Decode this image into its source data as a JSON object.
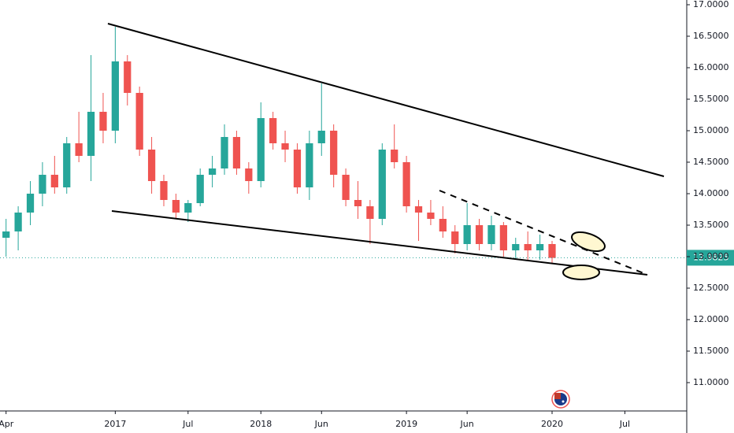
{
  "chart_data": {
    "type": "candlestick",
    "x": [
      0,
      1,
      2,
      3,
      4,
      5,
      6,
      7,
      8,
      9,
      10,
      11,
      12,
      13,
      14,
      15,
      16,
      17,
      18,
      19,
      20,
      21,
      22,
      23,
      24,
      25,
      26,
      27,
      28,
      29,
      30,
      31,
      32,
      33,
      34,
      35,
      36,
      37,
      38,
      39,
      40,
      41,
      42,
      43,
      44,
      45
    ],
    "open": [
      13.3,
      13.4,
      13.7,
      14.0,
      14.3,
      14.1,
      14.8,
      14.6,
      15.3,
      15.0,
      16.1,
      15.6,
      14.7,
      14.2,
      13.9,
      13.7,
      13.85,
      14.3,
      14.4,
      14.9,
      14.4,
      14.2,
      15.2,
      14.8,
      14.7,
      14.1,
      14.8,
      15.0,
      14.3,
      13.9,
      13.8,
      13.6,
      14.7,
      14.5,
      13.8,
      13.7,
      13.6,
      13.4,
      13.2,
      13.5,
      13.2,
      13.5,
      13.1,
      13.2,
      13.1,
      13.2
    ],
    "high": [
      13.6,
      13.8,
      14.2,
      14.5,
      14.6,
      14.9,
      15.3,
      16.2,
      15.6,
      16.65,
      16.2,
      15.7,
      14.9,
      14.3,
      14.0,
      13.9,
      14.4,
      14.6,
      15.1,
      15.0,
      14.5,
      15.45,
      15.3,
      15.0,
      14.8,
      15.0,
      15.75,
      15.1,
      14.4,
      14.2,
      13.9,
      14.8,
      15.1,
      14.6,
      13.9,
      13.9,
      13.8,
      13.5,
      13.85,
      13.6,
      13.65,
      13.55,
      13.3,
      13.4,
      13.35,
      13.25
    ],
    "low": [
      13.0,
      13.1,
      13.5,
      13.8,
      14.0,
      14.0,
      14.5,
      14.2,
      14.8,
      14.8,
      15.4,
      14.6,
      14.0,
      13.8,
      13.6,
      13.55,
      13.8,
      14.1,
      14.3,
      14.3,
      14.0,
      14.1,
      14.7,
      14.5,
      14.0,
      13.9,
      14.6,
      14.1,
      13.8,
      13.6,
      13.2,
      13.5,
      14.4,
      13.7,
      13.25,
      13.5,
      13.3,
      13.05,
      13.1,
      13.1,
      13.1,
      13.0,
      12.95,
      12.95,
      12.95,
      12.9
    ],
    "close": [
      13.4,
      13.7,
      14.0,
      14.3,
      14.1,
      14.8,
      14.6,
      15.3,
      15.0,
      16.1,
      15.6,
      14.7,
      14.2,
      13.9,
      13.7,
      13.85,
      14.3,
      14.4,
      14.9,
      14.4,
      14.2,
      15.2,
      14.8,
      14.7,
      14.1,
      14.8,
      15.0,
      14.3,
      13.9,
      13.8,
      13.6,
      14.7,
      14.5,
      13.8,
      13.7,
      13.6,
      13.4,
      13.2,
      13.5,
      13.2,
      13.5,
      13.1,
      13.2,
      13.1,
      13.2,
      12.98
    ],
    "up_color": "#26a69a",
    "down_color": "#ef5350",
    "last_price": 12.9825,
    "xlim": [
      -0.5,
      56.1
    ],
    "xticks": [
      {
        "value": 0,
        "label": "Apr"
      },
      {
        "value": 9,
        "label": "2017"
      },
      {
        "value": 15,
        "label": "Jul"
      },
      {
        "value": 21,
        "label": "2018"
      },
      {
        "value": 26,
        "label": "Jun"
      },
      {
        "value": 33,
        "label": "2019"
      },
      {
        "value": 38,
        "label": "Jun"
      },
      {
        "value": 45,
        "label": "2020"
      },
      {
        "value": 51,
        "label": "Jul"
      }
    ],
    "ylim": [
      10.55,
      17.075
    ],
    "yticks": [
      {
        "value": 11,
        "label": "11.0000"
      },
      {
        "value": 11.5,
        "label": "11.5000"
      },
      {
        "value": 12,
        "label": "12.0000"
      },
      {
        "value": 12.5,
        "label": "12.5000"
      },
      {
        "value": 13,
        "label": "13.0000"
      },
      {
        "value": 13.5,
        "label": "13.5000"
      },
      {
        "value": 14,
        "label": "14.0000"
      },
      {
        "value": 14.5,
        "label": "14.5000"
      },
      {
        "value": 15,
        "label": "15.0000"
      },
      {
        "value": 15.5,
        "label": "15.5000"
      },
      {
        "value": 16,
        "label": "16.0000"
      },
      {
        "value": 16.5,
        "label": "16.5000"
      },
      {
        "value": 17,
        "label": "17.0000"
      }
    ]
  }
}
